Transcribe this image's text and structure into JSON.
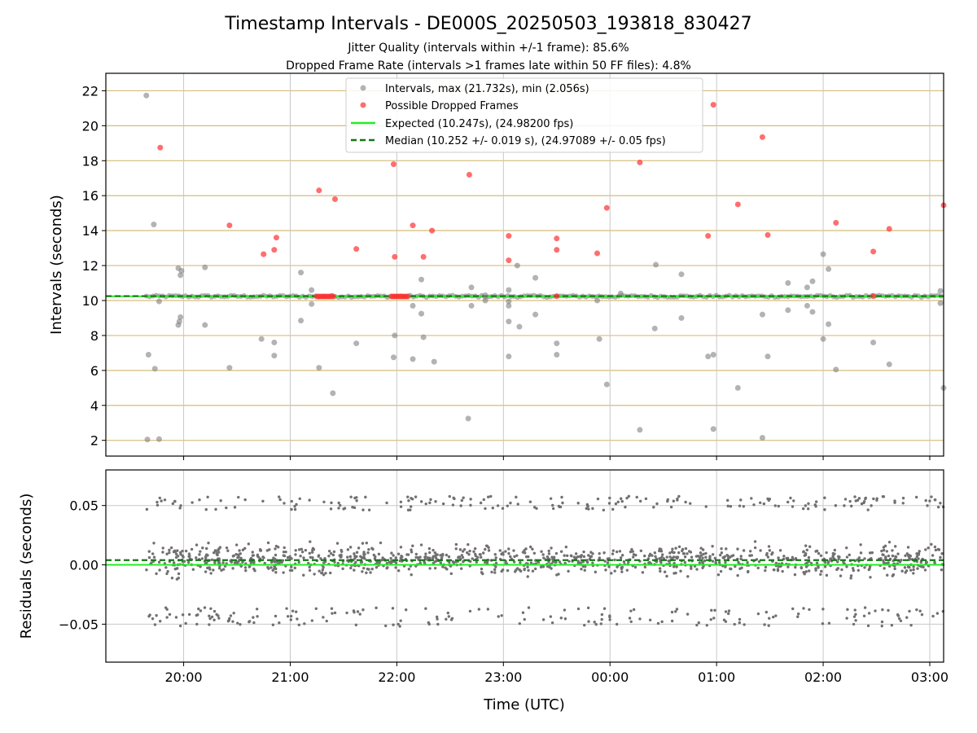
{
  "colors": {
    "intervals": "#808080",
    "dropped": "#ff3030",
    "expected": "#22ee22",
    "median": "#117711",
    "hgrid_top": "#d6bd7a",
    "vgrid": "#c8c8c8",
    "residuals": "#707070"
  },
  "chart_data": [
    {
      "type": "scatter",
      "title": "Timestamp Intervals - DE000S_20250503_193818_830427",
      "subtitle_lines": [
        "Jitter Quality (intervals within +/-1 frame): 85.6%",
        "Dropped Frame Rate (intervals >1 frames late within 50 FF files): 4.8%"
      ],
      "ylabel": "Intervals (seconds)",
      "ylim": [
        1.1,
        23.0
      ],
      "yticks": [
        2,
        4,
        6,
        8,
        10,
        12,
        14,
        16,
        18,
        20,
        22
      ],
      "xlim_hours": [
        19.27,
        27.13
      ],
      "grid": true,
      "legend_position": "top-center",
      "legend": [
        "Intervals, max (21.732s), min (2.056s)",
        "Possible Dropped Frames",
        "Expected (10.247s), (24.98200 fps)",
        "Median (10.252 +/- 0.019 s), (24.97089 +/- 0.05 fps)"
      ],
      "expected_interval": 10.247,
      "median_interval": 10.252,
      "baseline_range_hours": [
        19.65,
        27.13
      ],
      "intervals": [
        [
          19.65,
          21.73
        ],
        [
          19.67,
          6.9
        ],
        [
          19.66,
          2.05
        ],
        [
          19.72,
          14.35
        ],
        [
          19.73,
          6.1
        ],
        [
          19.77,
          2.07
        ],
        [
          19.77,
          9.95
        ],
        [
          19.95,
          11.85
        ],
        [
          19.95,
          8.6
        ],
        [
          19.96,
          8.8
        ],
        [
          19.97,
          9.05
        ],
        [
          19.97,
          11.45
        ],
        [
          19.98,
          11.7
        ],
        [
          20.2,
          11.9
        ],
        [
          20.2,
          8.6
        ],
        [
          20.43,
          6.15
        ],
        [
          20.73,
          7.8
        ],
        [
          20.85,
          6.85
        ],
        [
          20.85,
          7.6
        ],
        [
          21.1,
          11.6
        ],
        [
          21.1,
          8.85
        ],
        [
          21.2,
          10.6
        ],
        [
          21.2,
          9.8
        ],
        [
          21.27,
          6.15
        ],
        [
          21.4,
          4.7
        ],
        [
          21.62,
          7.55
        ],
        [
          21.98,
          8.0
        ],
        [
          21.97,
          6.75
        ],
        [
          22.15,
          9.7
        ],
        [
          22.15,
          6.65
        ],
        [
          22.23,
          11.2
        ],
        [
          22.23,
          9.25
        ],
        [
          22.25,
          7.9
        ],
        [
          22.35,
          6.5
        ],
        [
          22.67,
          3.25
        ],
        [
          22.7,
          10.75
        ],
        [
          22.7,
          9.7
        ],
        [
          22.83,
          10.3
        ],
        [
          22.83,
          10.0
        ],
        [
          23.05,
          10.6
        ],
        [
          23.05,
          9.95
        ],
        [
          23.05,
          9.7
        ],
        [
          23.05,
          8.8
        ],
        [
          23.05,
          6.8
        ],
        [
          23.13,
          12.0
        ],
        [
          23.15,
          8.5
        ],
        [
          23.3,
          11.3
        ],
        [
          23.3,
          9.2
        ],
        [
          23.5,
          7.55
        ],
        [
          23.5,
          6.9
        ],
        [
          23.88,
          10.0
        ],
        [
          23.9,
          7.8
        ],
        [
          23.97,
          5.2
        ],
        [
          24.1,
          10.4
        ],
        [
          24.28,
          2.6
        ],
        [
          24.43,
          12.05
        ],
        [
          24.42,
          8.4
        ],
        [
          24.67,
          11.5
        ],
        [
          24.67,
          9.0
        ],
        [
          24.92,
          6.8
        ],
        [
          24.97,
          6.9
        ],
        [
          24.97,
          2.65
        ],
        [
          25.2,
          5.0
        ],
        [
          25.43,
          9.2
        ],
        [
          25.43,
          2.15
        ],
        [
          25.48,
          6.8
        ],
        [
          25.67,
          11.0
        ],
        [
          25.67,
          9.45
        ],
        [
          25.85,
          10.75
        ],
        [
          25.85,
          9.7
        ],
        [
          25.9,
          11.1
        ],
        [
          25.9,
          9.35
        ],
        [
          26.0,
          12.65
        ],
        [
          26.0,
          7.8
        ],
        [
          26.05,
          11.8
        ],
        [
          26.05,
          8.65
        ],
        [
          26.12,
          6.05
        ],
        [
          26.47,
          7.6
        ],
        [
          26.62,
          6.35
        ],
        [
          27.1,
          10.55
        ],
        [
          27.1,
          9.85
        ],
        [
          27.13,
          5.0
        ]
      ],
      "dropped": [
        [
          19.78,
          18.75
        ],
        [
          20.43,
          14.3
        ],
        [
          20.75,
          12.65
        ],
        [
          20.85,
          12.9
        ],
        [
          20.87,
          13.6
        ],
        [
          21.27,
          16.3
        ],
        [
          21.42,
          15.8
        ],
        [
          21.62,
          12.95
        ],
        [
          21.97,
          17.8
        ],
        [
          21.98,
          12.5
        ],
        [
          22.15,
          14.3
        ],
        [
          22.25,
          12.5
        ],
        [
          22.33,
          14.0
        ],
        [
          22.68,
          17.2
        ],
        [
          23.05,
          13.7
        ],
        [
          23.05,
          12.3
        ],
        [
          23.5,
          13.55
        ],
        [
          23.5,
          12.9
        ],
        [
          23.88,
          12.7
        ],
        [
          23.97,
          15.3
        ],
        [
          24.28,
          17.9
        ],
        [
          24.92,
          13.7
        ],
        [
          24.97,
          21.2
        ],
        [
          25.2,
          15.5
        ],
        [
          25.43,
          19.35
        ],
        [
          25.48,
          13.75
        ],
        [
          26.12,
          14.45
        ],
        [
          26.47,
          12.8
        ],
        [
          26.62,
          14.1
        ],
        [
          27.13,
          15.45
        ],
        [
          23.5,
          10.25
        ],
        [
          26.47,
          10.25
        ]
      ],
      "dropped_clusters_hours": [
        [
          21.25,
          21.42
        ],
        [
          21.95,
          22.12
        ]
      ],
      "dropped_cluster_value": 10.23
    },
    {
      "type": "scatter",
      "ylabel": "Residuals (seconds)",
      "xlabel": "Time (UTC)",
      "ylim": [
        -0.082,
        0.08
      ],
      "yticks": [
        0.05,
        0.0,
        -0.05
      ],
      "ytick_labels": [
        "0.05",
        "0.00",
        "−0.05"
      ],
      "xticks_hours": [
        20,
        21,
        22,
        23,
        24,
        25,
        26,
        27
      ],
      "xtick_labels": [
        "20:00",
        "21:00",
        "22:00",
        "23:00",
        "00:00",
        "01:00",
        "02:00",
        "03:00"
      ],
      "xlim_hours": [
        19.27,
        27.13
      ],
      "grid": true,
      "expected_residual": 0.0,
      "median_residual": 0.004,
      "residual_range_hours": [
        19.65,
        27.13
      ],
      "residual_count": 1500,
      "residual_band_centers": [
        0.052,
        0.004,
        -0.044
      ],
      "residual_spread": 0.018
    }
  ]
}
